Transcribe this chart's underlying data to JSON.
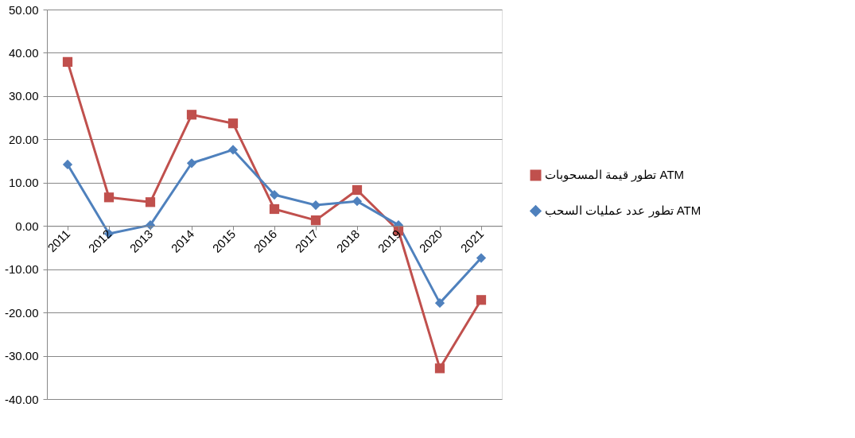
{
  "chart_data": {
    "type": "line",
    "categories": [
      "2011",
      "2012",
      "2013",
      "2014",
      "2015",
      "2016",
      "2017",
      "2018",
      "2019",
      "2020",
      "2021"
    ],
    "series": [
      {
        "name": "تطور قيمة المسحوبات ATM",
        "color": "#c0504d",
        "marker": "square",
        "values": [
          37.9,
          6.6,
          5.5,
          25.7,
          23.7,
          3.9,
          1.3,
          8.3,
          -1.1,
          -32.9,
          -17.1
        ]
      },
      {
        "name": "تطور عدد عمليات السحب ATM",
        "color": "#4f81bd",
        "marker": "diamond",
        "values": [
          14.2,
          -1.8,
          0.2,
          14.5,
          17.6,
          7.2,
          4.8,
          5.7,
          0.2,
          -17.8,
          -7.4
        ]
      }
    ],
    "ylim": [
      -40,
      50
    ],
    "yticks": [
      {
        "value": -40,
        "label": "-40.00"
      },
      {
        "value": -30,
        "label": "-30.00"
      },
      {
        "value": -20,
        "label": "-20.00"
      },
      {
        "value": -10,
        "label": "-10.00"
      },
      {
        "value": 0,
        "label": "0.00"
      },
      {
        "value": 10,
        "label": "10.00"
      },
      {
        "value": 20,
        "label": "20.00"
      },
      {
        "value": 30,
        "label": "30.00"
      },
      {
        "value": 40,
        "label": "40.00"
      },
      {
        "value": 50,
        "label": "50.00"
      }
    ],
    "grid": "y",
    "legend": "right",
    "line_style": "solid"
  }
}
